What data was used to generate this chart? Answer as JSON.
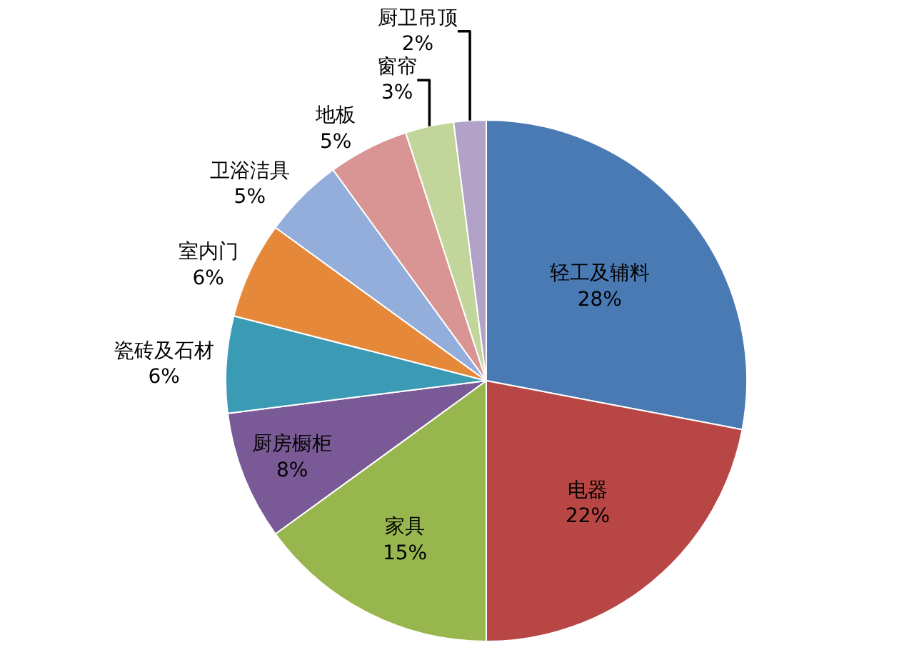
{
  "chart_data": {
    "type": "pie",
    "categories": [
      "轻工及辅料",
      "电器",
      "家具",
      "厨房橱柜",
      "瓷砖及石材",
      "室内门",
      "卫浴洁具",
      "地板",
      "窗帘",
      "厨卫吊顶"
    ],
    "values": [
      28,
      22,
      15,
      8,
      6,
      6,
      5,
      5,
      3,
      2
    ],
    "value_labels": [
      "28%",
      "22%",
      "15%",
      "8%",
      "6%",
      "6%",
      "5%",
      "5%",
      "3%",
      "2%"
    ],
    "colors": [
      "#4a7ab4",
      "#b84644",
      "#98b64e",
      "#7a5a96",
      "#3b9bb4",
      "#e6883a",
      "#94aedb",
      "#d99593",
      "#c2d69b",
      "#b2a2c7"
    ],
    "legend": false
  }
}
